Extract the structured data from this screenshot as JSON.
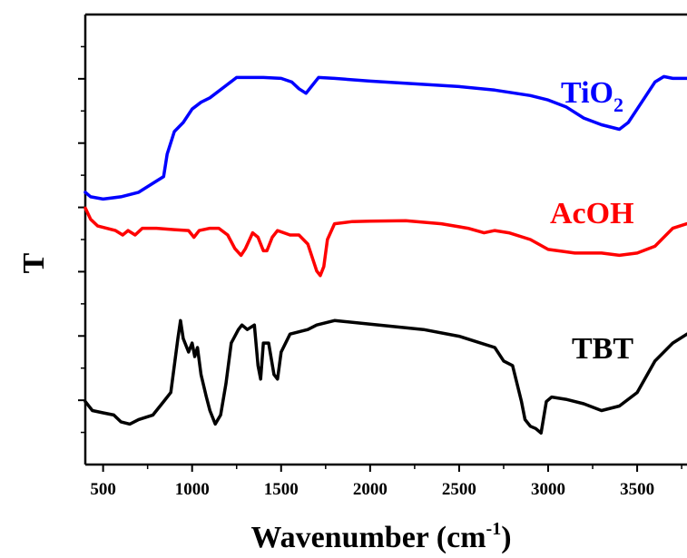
{
  "chart_data": {
    "type": "line",
    "title": "",
    "xlabel_main": "Wavenumber (cm",
    "xlabel_sup": "-1",
    "xlabel_close": ")",
    "ylabel": "T",
    "xlim": [
      400,
      3780
    ],
    "ylim": [
      0,
      1
    ],
    "y_ticks_labeled": false,
    "grid": false,
    "x_ticks": [
      500,
      1000,
      1500,
      2000,
      2500,
      3000,
      3500
    ],
    "x_tick_labels": [
      "500",
      "1000",
      "1500",
      "2000",
      "2500",
      "3000",
      "3500"
    ],
    "series": [
      {
        "name_main": "TiO",
        "name_sub": "2",
        "color": "#0000ff",
        "points": [
          [
            400,
            0.605
          ],
          [
            430,
            0.595
          ],
          [
            500,
            0.59
          ],
          [
            600,
            0.595
          ],
          [
            700,
            0.605
          ],
          [
            780,
            0.625
          ],
          [
            840,
            0.64
          ],
          [
            860,
            0.69
          ],
          [
            900,
            0.74
          ],
          [
            950,
            0.76
          ],
          [
            1000,
            0.79
          ],
          [
            1050,
            0.805
          ],
          [
            1100,
            0.815
          ],
          [
            1200,
            0.845
          ],
          [
            1250,
            0.86
          ],
          [
            1300,
            0.86
          ],
          [
            1400,
            0.86
          ],
          [
            1500,
            0.858
          ],
          [
            1560,
            0.85
          ],
          [
            1600,
            0.835
          ],
          [
            1640,
            0.825
          ],
          [
            1670,
            0.84
          ],
          [
            1710,
            0.86
          ],
          [
            1800,
            0.858
          ],
          [
            2000,
            0.852
          ],
          [
            2500,
            0.84
          ],
          [
            2700,
            0.832
          ],
          [
            2900,
            0.82
          ],
          [
            3000,
            0.81
          ],
          [
            3100,
            0.795
          ],
          [
            3200,
            0.77
          ],
          [
            3300,
            0.755
          ],
          [
            3400,
            0.745
          ],
          [
            3450,
            0.76
          ],
          [
            3500,
            0.79
          ],
          [
            3550,
            0.82
          ],
          [
            3600,
            0.85
          ],
          [
            3650,
            0.862
          ],
          [
            3700,
            0.858
          ],
          [
            3780,
            0.858
          ]
        ]
      },
      {
        "name": "AcOH",
        "color": "#ff0000",
        "points": [
          [
            400,
            0.57
          ],
          [
            430,
            0.545
          ],
          [
            470,
            0.53
          ],
          [
            520,
            0.525
          ],
          [
            570,
            0.52
          ],
          [
            610,
            0.51
          ],
          [
            640,
            0.52
          ],
          [
            680,
            0.51
          ],
          [
            720,
            0.525
          ],
          [
            800,
            0.525
          ],
          [
            900,
            0.522
          ],
          [
            980,
            0.52
          ],
          [
            1010,
            0.505
          ],
          [
            1040,
            0.52
          ],
          [
            1100,
            0.525
          ],
          [
            1150,
            0.525
          ],
          [
            1200,
            0.51
          ],
          [
            1240,
            0.48
          ],
          [
            1275,
            0.465
          ],
          [
            1300,
            0.48
          ],
          [
            1340,
            0.515
          ],
          [
            1370,
            0.505
          ],
          [
            1400,
            0.475
          ],
          [
            1420,
            0.475
          ],
          [
            1450,
            0.505
          ],
          [
            1480,
            0.52
          ],
          [
            1550,
            0.51
          ],
          [
            1600,
            0.51
          ],
          [
            1650,
            0.49
          ],
          [
            1700,
            0.43
          ],
          [
            1720,
            0.42
          ],
          [
            1740,
            0.44
          ],
          [
            1760,
            0.5
          ],
          [
            1800,
            0.535
          ],
          [
            1900,
            0.54
          ],
          [
            2000,
            0.541
          ],
          [
            2200,
            0.542
          ],
          [
            2400,
            0.535
          ],
          [
            2550,
            0.525
          ],
          [
            2640,
            0.515
          ],
          [
            2700,
            0.52
          ],
          [
            2780,
            0.515
          ],
          [
            2900,
            0.5
          ],
          [
            3000,
            0.478
          ],
          [
            3150,
            0.47
          ],
          [
            3300,
            0.47
          ],
          [
            3400,
            0.465
          ],
          [
            3500,
            0.47
          ],
          [
            3600,
            0.485
          ],
          [
            3700,
            0.525
          ],
          [
            3780,
            0.535
          ]
        ]
      },
      {
        "name": "TBT",
        "color": "#000000",
        "points": [
          [
            400,
            0.14
          ],
          [
            440,
            0.12
          ],
          [
            500,
            0.115
          ],
          [
            560,
            0.11
          ],
          [
            600,
            0.095
          ],
          [
            650,
            0.09
          ],
          [
            700,
            0.1
          ],
          [
            780,
            0.11
          ],
          [
            840,
            0.14
          ],
          [
            880,
            0.16
          ],
          [
            920,
            0.28
          ],
          [
            935,
            0.32
          ],
          [
            950,
            0.28
          ],
          [
            980,
            0.25
          ],
          [
            1000,
            0.27
          ],
          [
            1015,
            0.24
          ],
          [
            1030,
            0.26
          ],
          [
            1050,
            0.2
          ],
          [
            1080,
            0.15
          ],
          [
            1100,
            0.12
          ],
          [
            1130,
            0.09
          ],
          [
            1160,
            0.11
          ],
          [
            1190,
            0.18
          ],
          [
            1220,
            0.27
          ],
          [
            1260,
            0.3
          ],
          [
            1280,
            0.31
          ],
          [
            1310,
            0.3
          ],
          [
            1350,
            0.31
          ],
          [
            1370,
            0.22
          ],
          [
            1385,
            0.19
          ],
          [
            1400,
            0.27
          ],
          [
            1430,
            0.27
          ],
          [
            1460,
            0.2
          ],
          [
            1480,
            0.19
          ],
          [
            1500,
            0.25
          ],
          [
            1550,
            0.29
          ],
          [
            1650,
            0.3
          ],
          [
            1700,
            0.31
          ],
          [
            1800,
            0.32
          ],
          [
            2000,
            0.312
          ],
          [
            2300,
            0.3
          ],
          [
            2500,
            0.285
          ],
          [
            2700,
            0.26
          ],
          [
            2750,
            0.23
          ],
          [
            2800,
            0.22
          ],
          [
            2850,
            0.14
          ],
          [
            2870,
            0.1
          ],
          [
            2900,
            0.085
          ],
          [
            2930,
            0.08
          ],
          [
            2960,
            0.07
          ],
          [
            2990,
            0.14
          ],
          [
            3020,
            0.15
          ],
          [
            3100,
            0.145
          ],
          [
            3200,
            0.135
          ],
          [
            3300,
            0.12
          ],
          [
            3400,
            0.13
          ],
          [
            3500,
            0.16
          ],
          [
            3600,
            0.23
          ],
          [
            3700,
            0.27
          ],
          [
            3780,
            0.29
          ]
        ]
      }
    ]
  }
}
